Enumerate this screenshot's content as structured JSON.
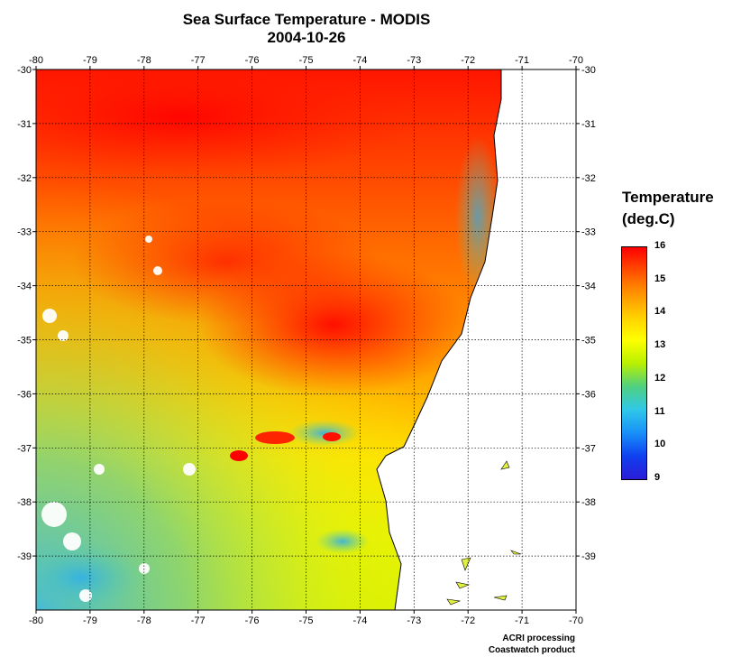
{
  "title": "Sea Surface Temperature - MODIS",
  "date": "2004-10-26",
  "legend": {
    "title_line1": "Temperature",
    "title_line2": "(deg.C)",
    "ticks": [
      "16",
      "15",
      "14",
      "13",
      "12",
      "11",
      "10",
      "9"
    ]
  },
  "map": {
    "lon_ticks": [
      "-80",
      "-79",
      "-78",
      "-77",
      "-76",
      "-75",
      "-74",
      "-73",
      "-72",
      "-71",
      "-70"
    ],
    "lat_ticks": [
      "-30",
      "-31",
      "-32",
      "-33",
      "-34",
      "-35",
      "-36",
      "-37",
      "-38",
      "-39"
    ],
    "lon_range": [
      -80,
      -70
    ],
    "lat_range": [
      -30,
      -40
    ],
    "grid": "dotted"
  },
  "colors": {
    "warm": "#ff1a00",
    "mid": "#ffd000",
    "cool": "#30b8e0",
    "land": "#ffffff"
  },
  "credits": {
    "line1": "ACRI processing",
    "line2": "Coastwatch product"
  }
}
